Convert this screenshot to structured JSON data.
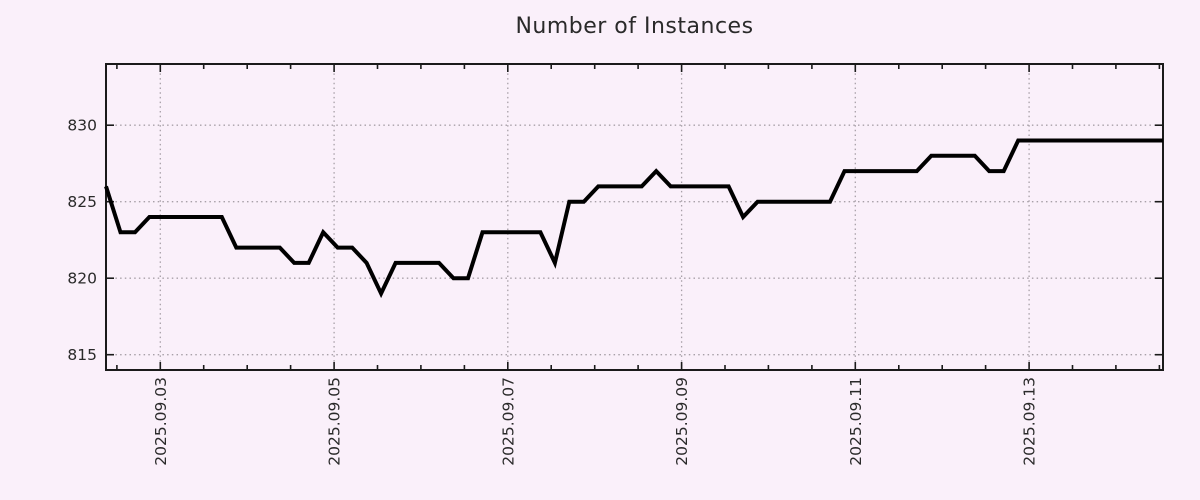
{
  "page": {
    "background": "#faf0fa"
  },
  "chart_data": {
    "type": "line",
    "title": "Number of Instances",
    "xlabel": "",
    "ylabel": "",
    "legend": "none",
    "grid": true,
    "grid_style": "dotted",
    "ylim": [
      814,
      834
    ],
    "y_ticks": [
      815,
      820,
      825,
      830
    ],
    "x_start": "2025-09-02 09:00",
    "x_step_hours": 4,
    "x_span_hours": 292,
    "x_end": "2025-09-14 13:00",
    "x_ticks": [
      {
        "offset_hours": 15,
        "label": "2025.09.03"
      },
      {
        "offset_hours": 63,
        "label": "2025.09.05"
      },
      {
        "offset_hours": 111,
        "label": "2025.09.07"
      },
      {
        "offset_hours": 159,
        "label": "2025.09.09"
      },
      {
        "offset_hours": 207,
        "label": "2025.09.11"
      },
      {
        "offset_hours": 255,
        "label": "2025.09.13"
      }
    ],
    "minor_tick_start_hours": 3,
    "minor_tick_every_hours": 12,
    "series": [
      {
        "name": "instances",
        "color": "#000000",
        "line_width": 4,
        "values": [
          826,
          823,
          823,
          824,
          824,
          824,
          824,
          824,
          824,
          822,
          822,
          822,
          822,
          821,
          821,
          823,
          822,
          822,
          821,
          819,
          821,
          821,
          821,
          821,
          820,
          820,
          823,
          823,
          823,
          823,
          823,
          821,
          825,
          825,
          826,
          826,
          826,
          826,
          827,
          826,
          826,
          826,
          826,
          826,
          824,
          825,
          825,
          825,
          825,
          825,
          825,
          827,
          827,
          827,
          827,
          827,
          827,
          828,
          828,
          828,
          828,
          827,
          827,
          829,
          829,
          829,
          829,
          829,
          829,
          829,
          829,
          829,
          829,
          829
        ]
      }
    ],
    "colors": {
      "background": "#faf0fa",
      "grid": "#a8a0a8",
      "axis": "#1a1a1a",
      "text": "#2a2a2a",
      "line": "#000000"
    }
  }
}
